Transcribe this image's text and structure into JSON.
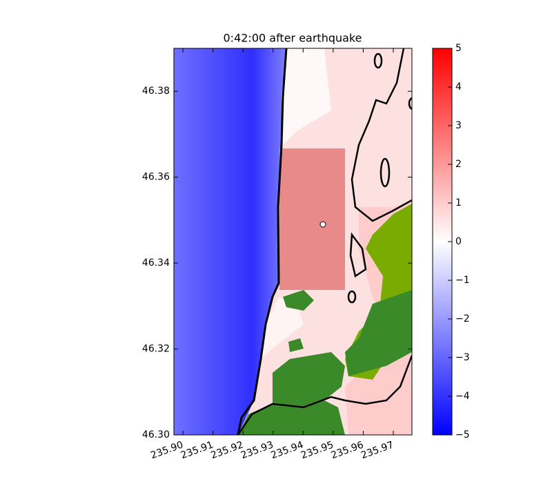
{
  "chart_data": {
    "type": "heatmap",
    "title": "0:42:00 after earthquake",
    "xlim": [
      235.897,
      235.9762
    ],
    "ylim": [
      46.3,
      46.39
    ],
    "xticks": [
      {
        "value": 235.9,
        "label": "235.90"
      },
      {
        "value": 235.91,
        "label": "235.91"
      },
      {
        "value": 235.92,
        "label": "235.92"
      },
      {
        "value": 235.93,
        "label": "235.93"
      },
      {
        "value": 235.94,
        "label": "235.94"
      },
      {
        "value": 235.95,
        "label": "235.95"
      },
      {
        "value": 235.96,
        "label": "235.96"
      },
      {
        "value": 235.97,
        "label": "235.97"
      }
    ],
    "yticks": [
      {
        "value": 46.3,
        "label": "46.30"
      },
      46.32,
      46.34,
      46.36,
      46.38
    ],
    "clim": [
      -5,
      5
    ],
    "cticks": [
      {
        "value": -5,
        "label": "−5"
      },
      {
        "value": -4,
        "label": "−4"
      },
      {
        "value": -3,
        "label": "−3"
      },
      {
        "value": -2,
        "label": "−2"
      },
      {
        "value": -1,
        "label": "−1"
      },
      0,
      1,
      2,
      3,
      4,
      5
    ]
  }
}
